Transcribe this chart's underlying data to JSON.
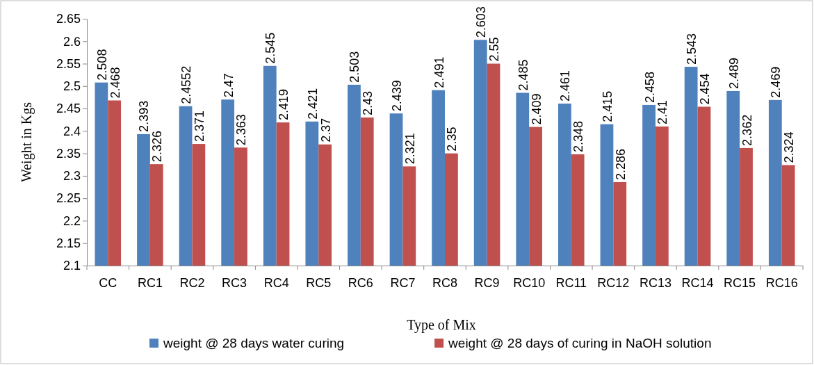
{
  "chart_data": {
    "type": "bar",
    "xlabel": "Type of Mix",
    "ylabel": "Weight in Kgs",
    "categories": [
      "CC",
      "RC1",
      "RC2",
      "RC3",
      "RC4",
      "RC5",
      "RC6",
      "RC7",
      "RC8",
      "RC9",
      "RC10",
      "RC11",
      "RC12",
      "RC13",
      "RC14",
      "RC15",
      "RC16"
    ],
    "series": [
      {
        "name": "weight @ 28 days water curing",
        "color": "#4f81bd",
        "values": [
          2.508,
          2.393,
          2.4552,
          2.47,
          2.545,
          2.421,
          2.503,
          2.439,
          2.491,
          2.603,
          2.485,
          2.461,
          2.415,
          2.458,
          2.543,
          2.489,
          2.469
        ]
      },
      {
        "name": "weight @ 28 days of curing in NaOH solution",
        "color": "#c0504d",
        "values": [
          2.468,
          2.326,
          2.371,
          2.363,
          2.419,
          2.37,
          2.43,
          2.321,
          2.35,
          2.55,
          2.409,
          2.348,
          2.286,
          2.41,
          2.454,
          2.362,
          2.324
        ]
      }
    ],
    "ylim": [
      2.1,
      2.65
    ],
    "yticks": [
      2.1,
      2.15,
      2.2,
      2.25,
      2.3,
      2.35,
      2.4,
      2.45,
      2.5,
      2.55,
      2.6,
      2.65
    ],
    "data_labels": true,
    "legend": "bottom",
    "grid": false
  }
}
